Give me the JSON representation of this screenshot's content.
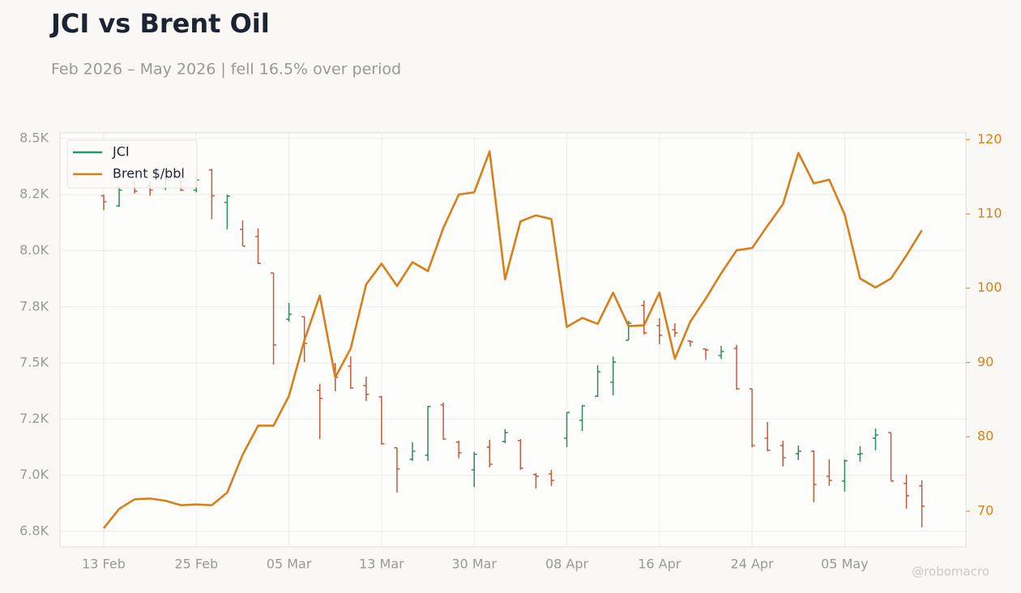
{
  "chart_data": {
    "type": "ohlc",
    "title": "JCI vs Brent Oil",
    "subtitle": "Feb 2026 – May 2026 | fell 16.5% over period",
    "watermark": "@robomacro",
    "legend": "upper left",
    "grid": true,
    "categories": [
      "13 Feb",
      null,
      null,
      null,
      null,
      null,
      "25 Feb",
      null,
      null,
      null,
      null,
      null,
      "05 Mar",
      null,
      null,
      null,
      null,
      null,
      "13 Mar",
      null,
      null,
      null,
      null,
      null,
      "30 Mar",
      null,
      null,
      null,
      null,
      null,
      "08 Apr",
      null,
      null,
      null,
      null,
      null,
      "16 Apr",
      null,
      null,
      null,
      null,
      null,
      "24 Apr",
      null,
      null,
      null,
      null,
      null,
      "05 May",
      null,
      null,
      null,
      null,
      null
    ],
    "ylim": [
      6681,
      8525
    ],
    "yticks": [
      {
        "value": 6750,
        "label": "6.8K"
      },
      {
        "value": 7000,
        "label": "7.0K"
      },
      {
        "value": 7250,
        "label": "7.2K"
      },
      {
        "value": 7500,
        "label": "7.5K"
      },
      {
        "value": 7750,
        "label": "7.8K"
      },
      {
        "value": 8000,
        "label": "8.0K"
      },
      {
        "value": 8250,
        "label": "8.2K"
      },
      {
        "value": 8500,
        "label": "8.5K"
      }
    ],
    "y2lim": [
      65.2,
      120.9
    ],
    "y2ticks": [
      70,
      80,
      90,
      100,
      110,
      120
    ],
    "y2color": "#d97f1a",
    "series": [
      {
        "name": "JCI",
        "type": "ohlc",
        "color": "#1f9a6a",
        "up_color": "#2e8b57",
        "down_color": "#c4593c",
        "open": [
          8245,
          8200,
          8300,
          8290,
          8280,
          8340,
          8270,
          8360,
          8215,
          8095,
          8063,
          7901,
          7695,
          7706,
          7378,
          7490,
          7486,
          7399,
          7349,
          7122,
          7071,
          7089,
          7313,
          7147,
          7024,
          7125,
          7150,
          7154,
          7003,
          7006,
          7165,
          7244,
          7352,
          7414,
          7601,
          7756,
          7666,
          7648,
          7598,
          7562,
          7533,
          7565,
          7385,
          7165,
          7132,
          7096,
          7107,
          6995,
          6974,
          7093,
          7165,
          7190,
          6963,
          6952
        ],
        "high": [
          8250,
          8290,
          8310,
          8310,
          8335,
          8350,
          8330,
          8365,
          8250,
          8135,
          8099,
          7901,
          7767,
          7706,
          7407,
          7500,
          7529,
          7439,
          7353,
          7122,
          7147,
          7309,
          7324,
          7154,
          7104,
          7158,
          7205,
          7161,
          7010,
          7024,
          7280,
          7313,
          7490,
          7529,
          7688,
          7778,
          7699,
          7677,
          7601,
          7565,
          7576,
          7580,
          7385,
          7237,
          7154,
          7132,
          7111,
          7071,
          7071,
          7129,
          7208,
          7190,
          7003,
          6977
        ],
        "low": [
          8180,
          8195,
          8255,
          8245,
          8270,
          8265,
          8260,
          8140,
          8095,
          8020,
          7940,
          7493,
          7684,
          7504,
          7161,
          7374,
          7385,
          7331,
          7136,
          6923,
          7064,
          7064,
          7158,
          7075,
          6948,
          7035,
          7143,
          7024,
          6941,
          6952,
          7125,
          7197,
          7349,
          7356,
          7601,
          7627,
          7583,
          7616,
          7573,
          7515,
          7518,
          7381,
          7125,
          7107,
          7039,
          7067,
          6880,
          6952,
          6927,
          7060,
          7111,
          6974,
          6851,
          6768
        ],
        "close": [
          8218,
          8270,
          8265,
          8270,
          8320,
          8270,
          8315,
          8245,
          8243,
          8020,
          7944,
          7580,
          7717,
          7587,
          7342,
          7436,
          7388,
          7360,
          7140,
          7028,
          7107,
          7306,
          7161,
          7100,
          7093,
          7049,
          7190,
          7031,
          6995,
          6977,
          7280,
          7309,
          7461,
          7504,
          7677,
          7634,
          7623,
          7634,
          7594,
          7558,
          7551,
          7385,
          7132,
          7111,
          7078,
          7107,
          6959,
          6977,
          7064,
          7096,
          7179,
          6974,
          6909,
          6862
        ]
      },
      {
        "name": "Brent $/bbl",
        "type": "line",
        "axis": "y2",
        "color": "#d97f1a",
        "values": [
          67.7,
          70.3,
          71.6,
          71.7,
          71.4,
          70.8,
          70.9,
          70.8,
          72.5,
          77.6,
          81.5,
          81.5,
          85.5,
          93.0,
          99.0,
          88.0,
          91.9,
          100.5,
          103.3,
          100.3,
          103.5,
          102.3,
          108.1,
          112.6,
          112.9,
          118.4,
          101.2,
          109.0,
          109.8,
          109.3,
          94.8,
          96.0,
          95.2,
          99.4,
          94.9,
          95.0,
          99.4,
          90.5,
          95.5,
          98.6,
          102.0,
          105.1,
          105.4,
          108.4,
          111.3,
          118.2,
          114.1,
          114.6,
          109.9,
          101.3,
          100.1,
          101.3,
          104.4,
          107.8
        ]
      }
    ]
  }
}
